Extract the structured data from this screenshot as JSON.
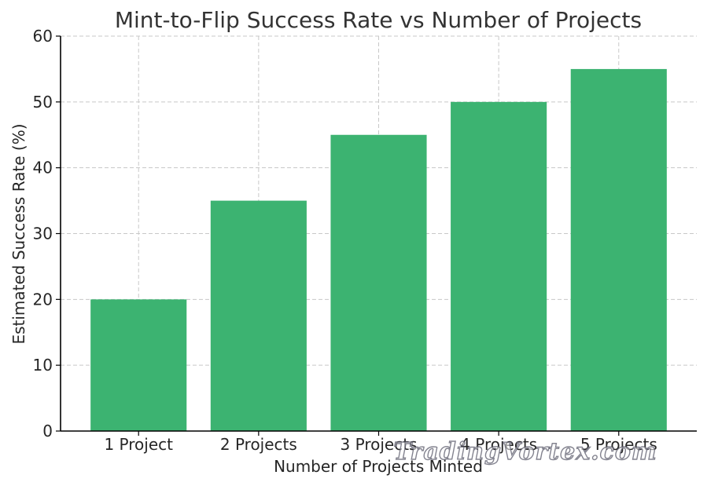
{
  "chart_data": {
    "type": "bar",
    "title": "Mint-to-Flip Success Rate vs Number of Projects",
    "xlabel": "Number of Projects Minted",
    "ylabel": "Estimated Success Rate (%)",
    "categories": [
      "1 Project",
      "2 Projects",
      "3 Projects",
      "4 Projects",
      "5 Projects"
    ],
    "values": [
      20,
      35,
      45,
      50,
      55
    ],
    "ylim": [
      0,
      60
    ],
    "yticks": [
      0,
      10,
      20,
      30,
      40,
      50,
      60
    ],
    "grid": true,
    "bar_color": "#3cb371"
  },
  "watermark": "TradingVortex.com"
}
